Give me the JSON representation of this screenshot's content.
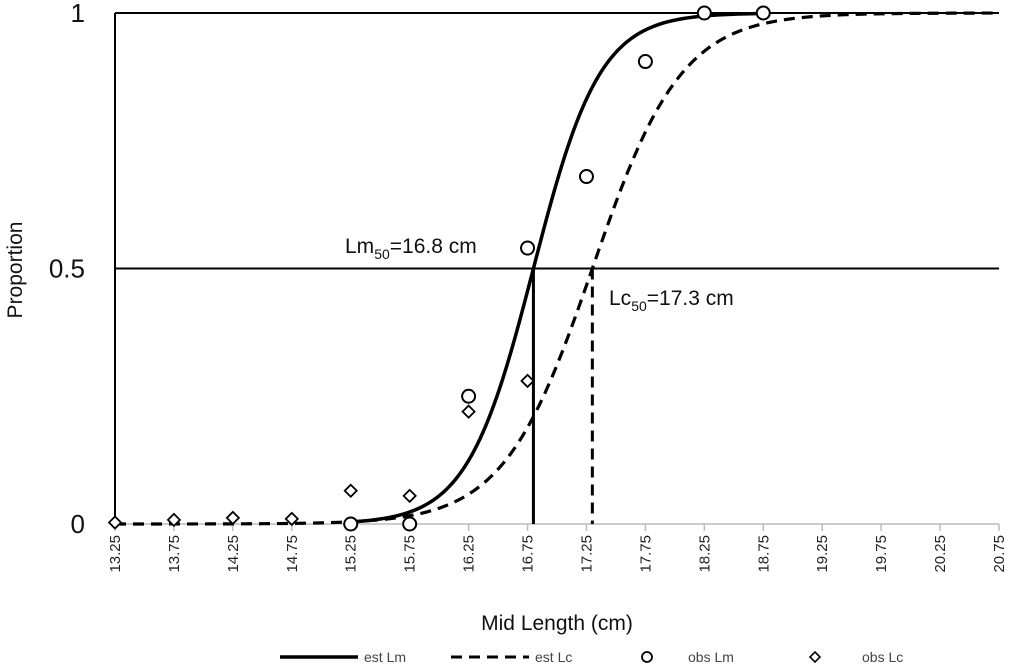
{
  "chart_data": {
    "type": "line",
    "title": "",
    "xlabel": "Mid Length (cm)",
    "ylabel": "Proportion",
    "x_categories": [
      "13.25",
      "13.75",
      "14.25",
      "14.75",
      "15.25",
      "15.75",
      "16.25",
      "16.75",
      "17.25",
      "17.75",
      "18.25",
      "18.75",
      "19.25",
      "19.75",
      "20.25",
      "20.75"
    ],
    "xlim": [
      13.25,
      20.75
    ],
    "ylim": [
      0,
      1
    ],
    "y_ticks": [
      "0",
      "0.5",
      "1"
    ],
    "y_tick_values": [
      0,
      0.5,
      1
    ],
    "grid": "horizontal",
    "legend_position": "bottom",
    "series": [
      {
        "name": "est Lm",
        "style": "solid",
        "start_x": 15.25,
        "end_x": 18.75,
        "logistic": {
          "l50": 16.8,
          "slope": 3.55
        }
      },
      {
        "name": "est Lc",
        "style": "dashed",
        "start_x": 13.25,
        "end_x": 20.75,
        "logistic": {
          "l50": 17.3,
          "slope": 2.65
        }
      },
      {
        "name": "obs Lm",
        "marker": "circle",
        "x": [
          15.25,
          15.75,
          16.25,
          16.75,
          17.25,
          17.75,
          18.25,
          18.75
        ],
        "y": [
          0.0,
          0.0,
          0.25,
          0.54,
          0.68,
          0.905,
          1.0,
          1.0
        ]
      },
      {
        "name": "obs Lc",
        "marker": "diamond",
        "x": [
          13.25,
          13.75,
          14.25,
          14.75,
          15.25,
          15.75,
          16.25,
          16.75
        ],
        "y": [
          0.003,
          0.008,
          0.012,
          0.01,
          0.065,
          0.055,
          0.22,
          0.28
        ]
      }
    ],
    "annotations": [
      {
        "main": "Lm",
        "sub": "50",
        "rest": "=16.8 cm",
        "x": 16.8,
        "y": 0.5
      },
      {
        "main": "Lc",
        "sub": "50",
        "rest": "=17.3 cm",
        "x": 17.3,
        "y": 0.5
      }
    ]
  }
}
